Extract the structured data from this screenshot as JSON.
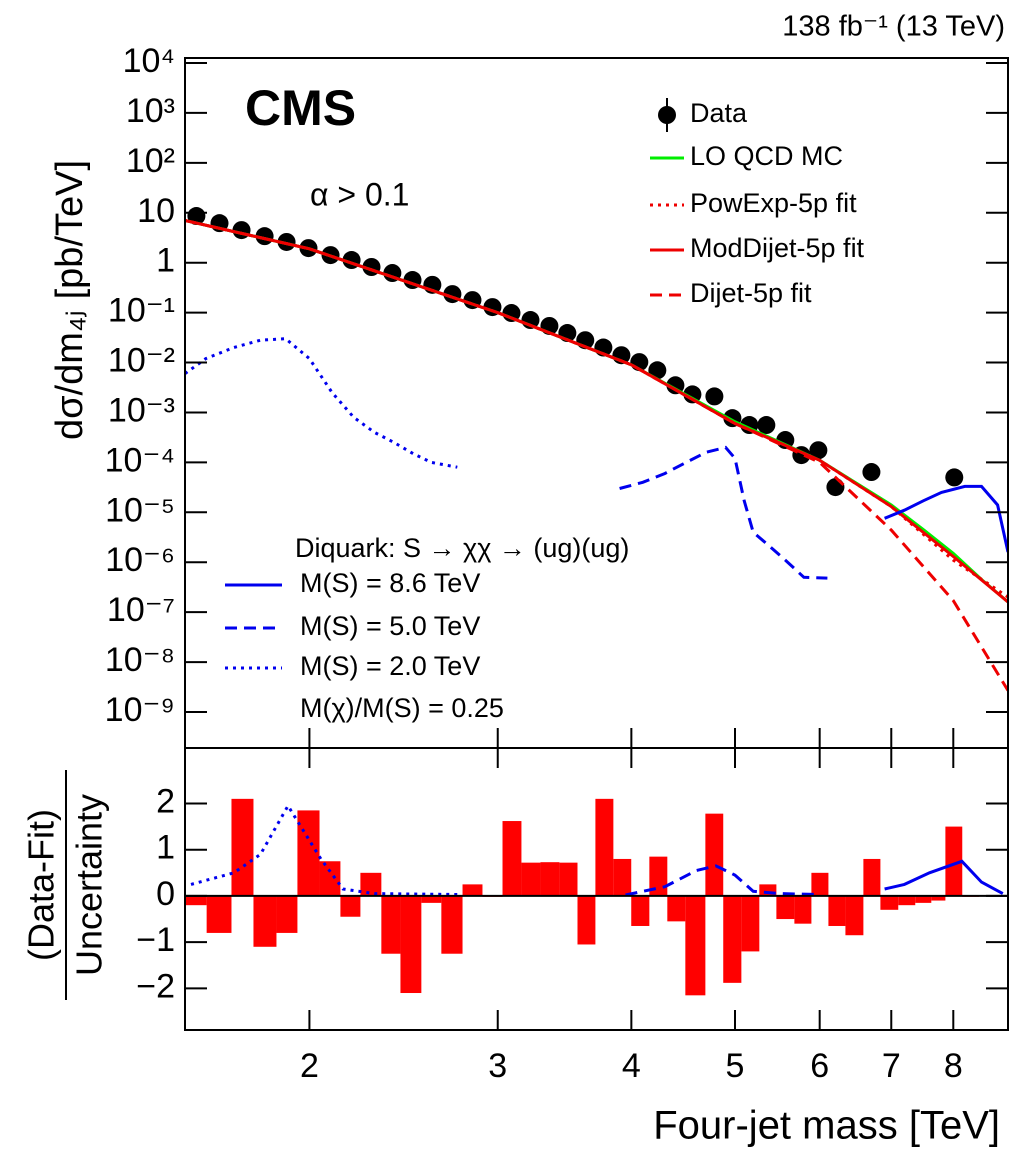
{
  "chart_data": [
    {
      "type": "line",
      "ylabel": "dσ/dm₄ⱼ [pb/TeV]",
      "annotations": {
        "lumi": "138 fb⁻¹ (13 TeV)",
        "experiment": "CMS",
        "cut": "α > 0.1",
        "signal_header": "Diquark: S → χχ → (ug)(ug)",
        "signal_ratio": "M(χ)/M(S) = 0.25"
      },
      "log_x": true,
      "log_y": true,
      "xlim": [
        1.53,
        9
      ],
      "ylim": [
        1.9e-10,
        12600
      ],
      "yticks": [
        {
          "value": 10000,
          "label": "10⁴"
        },
        {
          "value": 1000,
          "label": "10³"
        },
        {
          "value": 100,
          "label": "10²"
        },
        10,
        1,
        {
          "value": 0.1,
          "label": "10⁻¹"
        },
        {
          "value": 0.01,
          "label": "10⁻²"
        },
        {
          "value": 0.001,
          "label": "10⁻³"
        },
        {
          "value": 0.0001,
          "label": "10⁻⁴"
        },
        {
          "value": 1e-05,
          "label": "10⁻⁵"
        },
        {
          "value": 1e-06,
          "label": "10⁻⁶"
        },
        {
          "value": 1e-07,
          "label": "10⁻⁷"
        },
        {
          "value": 1e-08,
          "label": "10⁻⁸"
        },
        {
          "value": 1e-09,
          "label": "10⁻⁹"
        }
      ],
      "series": [
        {
          "name": "Data",
          "kind": "scatter",
          "color": "#000000",
          "x": [
            1.568,
            1.648,
            1.728,
            1.816,
            1.904,
            1.996,
            2.093,
            2.19,
            2.286,
            2.391,
            2.497,
            2.606,
            2.721,
            2.841,
            2.966,
            3.09,
            3.219,
            3.353,
            3.485,
            3.622,
            3.766,
            3.915,
            4.069,
            4.23,
            4.398,
            4.562,
            4.783,
            4.972,
            5.157,
            5.349,
            5.572,
            5.768,
            5.983,
            6.207,
            6.707,
            8.017
          ],
          "values": [
            8.6,
            6.2,
            4.5,
            3.4,
            2.6,
            1.96,
            1.42,
            1.13,
            0.82,
            0.62,
            0.45,
            0.36,
            0.235,
            0.178,
            0.129,
            0.098,
            0.071,
            0.054,
            0.039,
            0.028,
            0.02,
            0.014,
            0.0102,
            0.007,
            0.0035,
            0.0023,
            0.0021,
            0.00077,
            0.00056,
            0.00056,
            0.00028,
            0.00014,
            0.000175,
            3.2e-05,
            6.4e-05,
            5e-05
          ]
        },
        {
          "name": "LO QCD MC",
          "kind": "line",
          "style": "solid",
          "color": "#00ee00",
          "x": [
            1.53,
            2,
            3,
            4,
            5,
            6,
            7,
            7.5,
            8,
            8.5,
            9
          ],
          "values": [
            7,
            1.9,
            0.1,
            0.009,
            0.00065,
            0.00011,
            1.4e-05,
            4.5e-06,
            1.5e-06,
            4.5e-07,
            1.6e-07
          ]
        },
        {
          "name": "PowExp-5p fit",
          "kind": "line",
          "style": "dotted",
          "color": "#ee0000",
          "x": [
            1.53,
            2,
            3,
            4,
            5,
            6,
            7,
            8,
            9
          ],
          "values": [
            7,
            1.9,
            0.1,
            0.009,
            0.0006,
            0.00011,
            1.3e-05,
            1.1e-06,
            2e-07
          ]
        },
        {
          "name": "ModDijet-5p fit",
          "kind": "line",
          "style": "solid",
          "color": "#ee0000",
          "x": [
            1.53,
            2,
            3,
            4,
            5,
            6,
            7,
            8,
            9
          ],
          "values": [
            7,
            1.9,
            0.1,
            0.009,
            0.0006,
            0.00011,
            1.3e-05,
            1.3e-06,
            1.6e-07
          ]
        },
        {
          "name": "Dijet-5p fit",
          "kind": "line",
          "style": "dashed",
          "color": "#ee0000",
          "x": [
            1.53,
            2,
            3,
            4,
            5,
            6,
            7,
            8,
            9
          ],
          "values": [
            7,
            1.9,
            0.1,
            0.009,
            0.0006,
            0.0001,
            4.4e-06,
            1.7e-07,
            2.7e-09
          ]
        },
        {
          "name": "M(S) = 8.6 TeV",
          "kind": "line",
          "style": "solid",
          "color": "#0000ee",
          "group": "signal",
          "x": [
            6.9,
            7.2,
            7.5,
            7.8,
            8.2,
            8.5,
            8.8,
            9
          ],
          "values": [
            7.6e-06,
            1.1e-05,
            1.7e-05,
            2.5e-05,
            3.3e-05,
            3.3e-05,
            1.4e-05,
            1.6e-06
          ]
        },
        {
          "name": "M(S) = 5.0 TeV",
          "kind": "line",
          "style": "dashed",
          "color": "#0000ee",
          "group": "signal",
          "x": [
            3.9,
            4.1,
            4.3,
            4.5,
            4.7,
            4.9,
            5.0,
            5.1,
            5.2,
            5.4,
            5.6,
            5.8,
            6.1
          ],
          "values": [
            3e-05,
            4e-05,
            6e-05,
            0.0001,
            0.00016,
            0.0002,
            0.00012,
            1.7e-05,
            4e-06,
            2e-06,
            1e-06,
            5e-07,
            4.8e-07
          ]
        },
        {
          "name": "M(S) = 2.0 TeV",
          "kind": "line",
          "style": "dotted",
          "color": "#0000ee",
          "group": "signal",
          "x": [
            1.53,
            1.6,
            1.7,
            1.8,
            1.9,
            2.0,
            2.1,
            2.2,
            2.3,
            2.4,
            2.5,
            2.6,
            2.75
          ],
          "values": [
            0.006,
            0.012,
            0.02,
            0.028,
            0.03,
            0.012,
            0.0025,
            0.0008,
            0.0004,
            0.00025,
            0.00015,
            0.0001,
            8e-05
          ]
        }
      ]
    },
    {
      "type": "histogram",
      "ylabel": [
        "(Data-Fit)",
        "Uncertainty"
      ],
      "xlabel": "Four-jet mass [TeV]",
      "log_x": true,
      "xlim": [
        1.53,
        9
      ],
      "xticks": [
        2,
        3,
        4,
        5,
        6,
        7,
        8
      ],
      "ylim": [
        -2.9,
        3.2
      ],
      "yticks": [
        {
          "value": -2,
          "label": "−2"
        },
        {
          "value": -1,
          "label": "−1"
        },
        0,
        1,
        2
      ],
      "color": "#ff0000",
      "bins": [
        1.529,
        1.603,
        1.691,
        1.773,
        1.863,
        1.949,
        2.044,
        2.138,
        2.232,
        2.335,
        2.433,
        2.545,
        2.657,
        2.781,
        2.903,
        3.031,
        3.157,
        3.289,
        3.426,
        3.562,
        3.702,
        3.848,
        3.999,
        4.158,
        4.322,
        4.493,
        4.691,
        4.875,
        5.069,
        5.269,
        5.466,
        5.682,
        5.894,
        6.114,
        6.342,
        6.592,
        6.838,
        7.106,
        7.371,
        7.63,
        7.865,
        8.156,
        8.46
      ],
      "values": [
        -0.2,
        -0.8,
        2.1,
        -1.1,
        -0.8,
        1.85,
        0.75,
        -0.45,
        0.5,
        -1.25,
        -2.1,
        -0.15,
        -1.25,
        0.25,
        -0.02,
        1.62,
        0.72,
        0.73,
        0.72,
        -1.05,
        2.1,
        0.8,
        -0.65,
        0.85,
        -0.55,
        -2.15,
        1.78,
        -1.88,
        -1.2,
        0.25,
        -0.5,
        -0.6,
        0.5,
        -0.65,
        -0.85,
        0.8,
        -0.3,
        -0.2,
        -0.15,
        -0.1,
        1.5,
        -0.02
      ],
      "series": [
        {
          "style": "solid",
          "color": "#0000ee",
          "x": [
            6.9,
            7.2,
            7.6,
            8.15,
            8.5,
            8.9
          ],
          "values": [
            0.15,
            0.25,
            0.5,
            0.75,
            0.3,
            0.05
          ]
        },
        {
          "style": "dashed",
          "color": "#0000ee",
          "x": [
            3.95,
            4.3,
            4.6,
            4.8,
            5.0,
            5.2,
            5.5,
            6.0
          ],
          "values": [
            0.02,
            0.2,
            0.55,
            0.65,
            0.45,
            0.1,
            0.05,
            0.03
          ]
        },
        {
          "style": "dotted",
          "color": "#0000ee",
          "x": [
            1.55,
            1.7,
            1.8,
            1.91,
            2.05,
            2.15,
            2.3,
            2.75
          ],
          "values": [
            0.25,
            0.5,
            0.9,
            1.95,
            0.8,
            0.15,
            0.05,
            0.03
          ]
        }
      ]
    }
  ]
}
